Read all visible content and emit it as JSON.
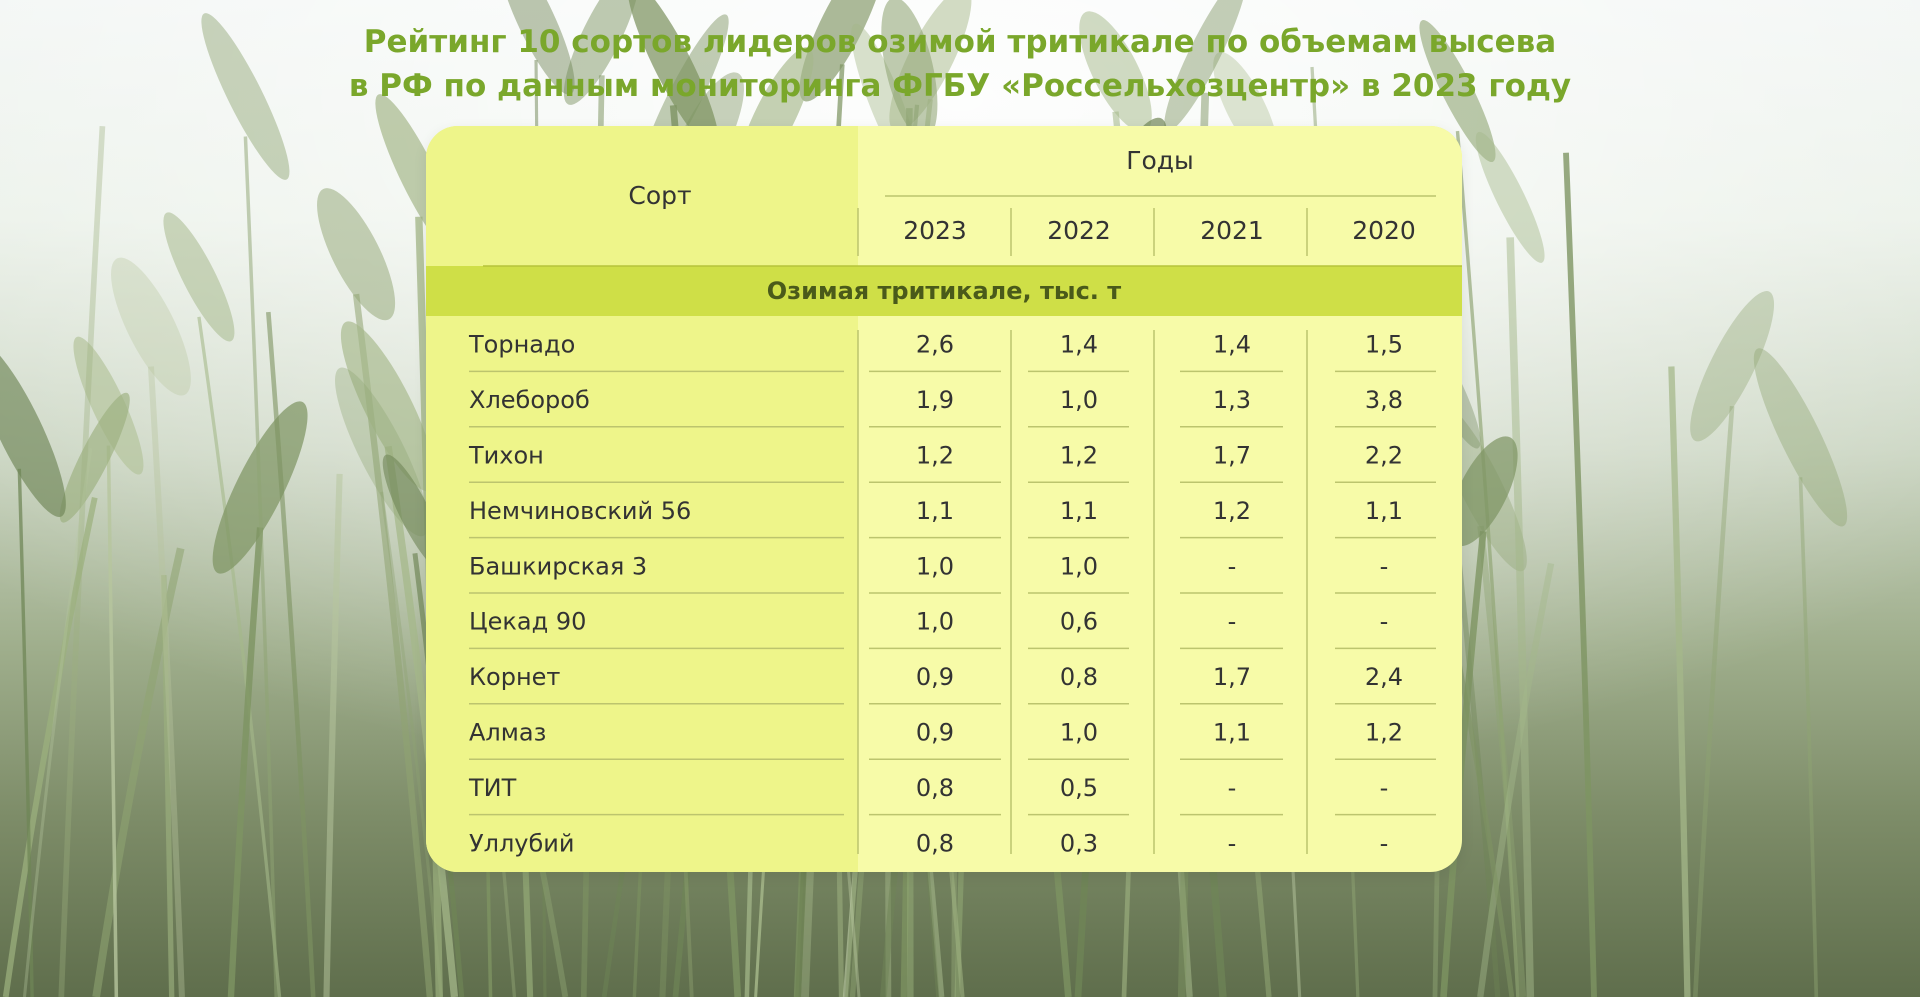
{
  "title_lines": [
    "Рейтинг 10 сортов лидеров озимой тритикале по объемам высева",
    "в РФ по данным мониторинга ФГБУ «Россельхозцентр» в 2023 году"
  ],
  "colors": {
    "title": "#7aa72b",
    "card_bg": "#f7fba8",
    "name_col_bg": "#eef58a",
    "band": "#cfdf47",
    "lines": "#bcc46e"
  },
  "chart_data": {
    "type": "table",
    "title": "Рейтинг 10 сортов лидеров озимой тритикале по объемам высева в РФ по данным мониторинга ФГБУ «Россельхозцентр» в 2023 году",
    "row_header": "Сорт",
    "group_header": "Годы",
    "columns": [
      "2023",
      "2022",
      "2021",
      "2020"
    ],
    "section_label": "Озимая тритикале, тыс. т",
    "rows": [
      {
        "name": "Торнадо",
        "values": [
          "2,6",
          "1,4",
          "1,4",
          "1,5"
        ]
      },
      {
        "name": "Хлебороб",
        "values": [
          "1,9",
          "1,0",
          "1,3",
          "3,8"
        ]
      },
      {
        "name": "Тихон",
        "values": [
          "1,2",
          "1,2",
          "1,7",
          "2,2"
        ]
      },
      {
        "name": "Немчиновский 56",
        "values": [
          "1,1",
          "1,1",
          "1,2",
          "1,1"
        ]
      },
      {
        "name": "Башкирская 3",
        "values": [
          "1,0",
          "1,0",
          "-",
          "-"
        ]
      },
      {
        "name": "Цекад 90",
        "values": [
          "1,0",
          "0,6",
          "-",
          "-"
        ]
      },
      {
        "name": "Корнет",
        "values": [
          "0,9",
          "0,8",
          "1,7",
          "2,4"
        ]
      },
      {
        "name": "Алмаз",
        "values": [
          "0,9",
          "1,0",
          "1,1",
          "1,2"
        ]
      },
      {
        "name": "ТИТ",
        "values": [
          "0,8",
          "0,5",
          "-",
          "-"
        ]
      },
      {
        "name": "Уллубий",
        "values": [
          "0,8",
          "0,3",
          "-",
          "-"
        ]
      }
    ]
  }
}
